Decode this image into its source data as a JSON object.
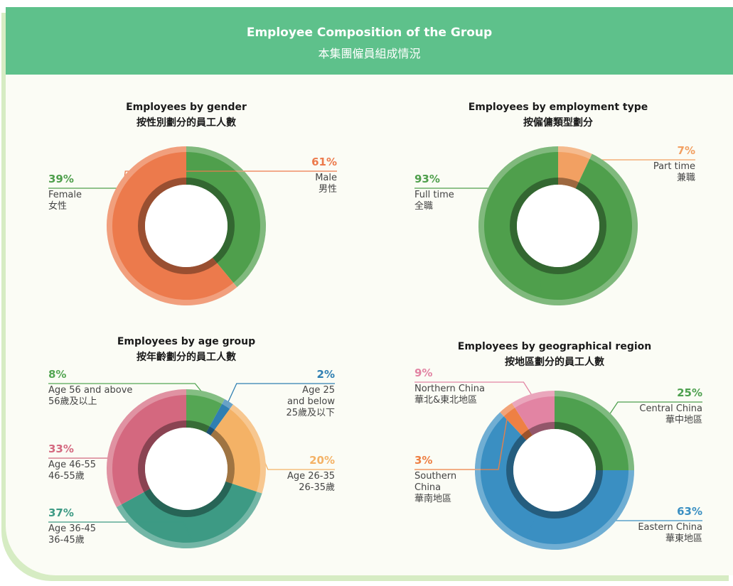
{
  "header": {
    "title": "Employee Composition of the Group",
    "subtitle": "本集團僱員組成情況"
  },
  "chart_data": [
    {
      "type": "pie",
      "title": "Employees by gender",
      "subtitle": "按性別劃分的員工人數",
      "categories": [
        "Female",
        "Male"
      ],
      "categories_zh": [
        "女性",
        "男性"
      ],
      "values": [
        39,
        61
      ],
      "value_labels": [
        "39%",
        "61%"
      ],
      "colors": [
        "#4f9f4c",
        "#ec7a4c"
      ]
    },
    {
      "type": "pie",
      "title": "Employees by employment type",
      "subtitle": "按僱傭類型劃分",
      "categories": [
        "Part time",
        "Full time"
      ],
      "categories_zh": [
        "兼職",
        "全職"
      ],
      "values": [
        7,
        93
      ],
      "value_labels": [
        "7%",
        "93%"
      ],
      "colors": [
        "#f2a062",
        "#4f9f4c"
      ]
    },
    {
      "type": "pie",
      "title": "Employees by age group",
      "subtitle": "按年齡劃分的員工人數",
      "categories": [
        "Age 56 and above",
        "Age 25 and below",
        "Age 26-35",
        "Age 36-45",
        "Age 46-55"
      ],
      "categories_zh": [
        "56歲及以上",
        "25歲及以下",
        "26-35歲",
        "36-45歲",
        "46-55歲"
      ],
      "values": [
        8,
        2,
        20,
        37,
        33
      ],
      "value_labels": [
        "8%",
        "2%",
        "20%",
        "37%",
        "33%"
      ],
      "colors": [
        "#55a654",
        "#2f7fb2",
        "#f4b266",
        "#3d9a84",
        "#d4687f"
      ]
    },
    {
      "type": "pie",
      "title": "Employees by geographical region",
      "subtitle": "按地區劃分的員工人數",
      "categories": [
        "Central China",
        "Eastern China",
        "Southern China",
        "Northern China"
      ],
      "categories_zh": [
        "華中地區",
        "華東地區",
        "華南地區",
        "華北&東北地區"
      ],
      "values": [
        25,
        63,
        3,
        9
      ],
      "value_labels": [
        "25%",
        "63%",
        "3%",
        "9%"
      ],
      "colors": [
        "#4ea04f",
        "#3a8fc2",
        "#ee8044",
        "#e284a3"
      ]
    }
  ]
}
